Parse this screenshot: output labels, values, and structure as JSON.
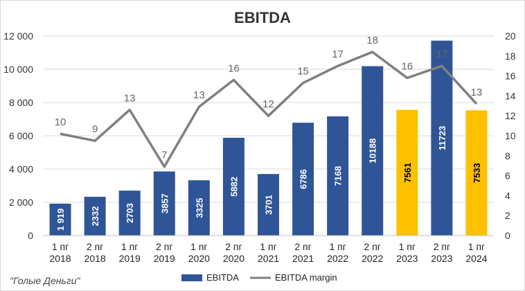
{
  "chart_data": {
    "type": "bar",
    "title": "EBITDA",
    "categories": [
      "1 пг 2018",
      "2 пг 2018",
      "1 пг 2019",
      "2 пг 2019",
      "1 пг 2020",
      "2 пг 2020",
      "1 пг 2021",
      "2 пг 2021",
      "1 пг 2022",
      "2 пг 2022",
      "1 пг 2023",
      "2 пг 2023",
      "1 пг 2024"
    ],
    "category_lines": [
      [
        "1 пг",
        "2018"
      ],
      [
        "2 пг",
        "2018"
      ],
      [
        "1 пг",
        "2019"
      ],
      [
        "2 пг",
        "2019"
      ],
      [
        "1 пг",
        "2020"
      ],
      [
        "2 пг",
        "2020"
      ],
      [
        "1 пг",
        "2021"
      ],
      [
        "2 пг",
        "2021"
      ],
      [
        "1 пг",
        "2022"
      ],
      [
        "2 пг",
        "2022"
      ],
      [
        "1 пг",
        "2023"
      ],
      [
        "2 пг",
        "2023"
      ],
      [
        "1 пг",
        "2024"
      ]
    ],
    "series": [
      {
        "name": "EBITDA",
        "type": "bar",
        "axis": "left",
        "values": [
          1919,
          2332,
          2703,
          3857,
          3325,
          5882,
          3701,
          6786,
          7168,
          10188,
          7561,
          11723,
          7533
        ],
        "labels": [
          "1 919",
          "2332",
          "2703",
          "3857",
          "3325",
          "5882",
          "3701",
          "6786",
          "7168",
          "10188",
          "7561",
          "11723",
          "7533"
        ],
        "highlighted": [
          false,
          false,
          false,
          false,
          false,
          false,
          false,
          false,
          false,
          false,
          true,
          false,
          true
        ],
        "color": "#2f5597",
        "highlight_color": "#ffc000"
      },
      {
        "name": "EBITDA margin",
        "type": "line",
        "axis": "right",
        "values": [
          10.2,
          9.5,
          12.6,
          6.9,
          12.9,
          15.6,
          12.0,
          15.3,
          17.0,
          18.4,
          15.8,
          17.0,
          13.2
        ],
        "labels": [
          "10",
          "9",
          "13",
          "7",
          "13",
          "16",
          "12",
          "15",
          "17",
          "18",
          "16",
          "17",
          "13"
        ],
        "color": "#7f7f7f"
      }
    ],
    "y_left": {
      "min": 0,
      "max": 12000,
      "ticks": [
        0,
        2000,
        4000,
        6000,
        8000,
        10000,
        12000
      ],
      "tick_labels": [
        "0",
        "2 000",
        "4 000",
        "6 000",
        "8 000",
        "10 000",
        "12 000"
      ]
    },
    "y_right": {
      "min": 0,
      "max": 20,
      "ticks": [
        0,
        2,
        4,
        6,
        8,
        10,
        12,
        14,
        16,
        18,
        20
      ],
      "tick_labels": [
        "0",
        "2",
        "4",
        "6",
        "8",
        "10",
        "12",
        "14",
        "16",
        "18",
        "20"
      ]
    },
    "grid": true,
    "legend_position": "bottom-center"
  },
  "watermark": "\"Голые Деньги\""
}
